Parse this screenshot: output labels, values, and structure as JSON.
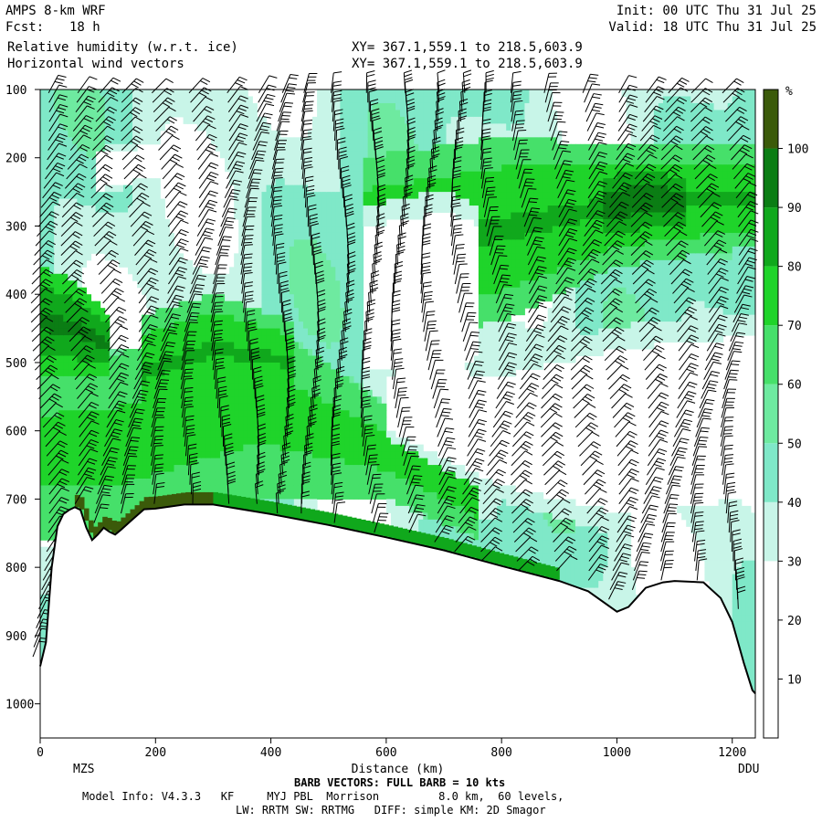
{
  "header": {
    "model": "AMPS 8-km WRF",
    "forecast_label": "Fcst:",
    "forecast_value": "18 h",
    "field1": "Relative humidity (w.r.t. ice)",
    "field2": "Horizontal wind vectors",
    "init": "Init: 00 UTC Thu 31 Jul 25",
    "valid": "Valid: 18 UTC Thu 31 Jul 25",
    "xy1": "XY= 367.1,559.1 to 218.5,603.9",
    "xy2": "XY= 367.1,559.1 to 218.5,603.9"
  },
  "footer": {
    "barb_note": "BARB VECTORS: FULL BARB = 10 kts",
    "model_info": "Model Info: V4.3.3   KF     MYJ PBL  Morrison         8.0 km,  60 levels,",
    "physics": "LW: RRTM SW: RRTMG   DIFF: simple KM: 2D Smagor"
  },
  "colors": {
    "bands": [
      "#ffffff",
      "#ffffff",
      "#ffffff",
      "#c8f5e8",
      "#7fe8c8",
      "#6eeaa0",
      "#46e06a",
      "#1fd42a",
      "#10a81c",
      "#0b7d14",
      "#3b5a0a"
    ],
    "barb": "#000000",
    "terrain_line": "#000000"
  },
  "chart_data": {
    "type": "heatmap",
    "title": "Relative humidity (w.r.t. ice)",
    "xlabel": "Distance (km)",
    "ylabel": "",
    "x_ticks": [
      0,
      200,
      400,
      600,
      800,
      1000,
      1200
    ],
    "y_ticks": [
      100,
      200,
      300,
      400,
      500,
      600,
      700,
      800,
      900,
      1000
    ],
    "xlim": [
      0,
      1240
    ],
    "ylim": [
      1050,
      100
    ],
    "start_label": "MZS",
    "end_label": "DDU",
    "colorbar": {
      "unit": "%",
      "ticks": [
        10,
        20,
        30,
        40,
        50,
        60,
        70,
        80,
        90,
        100
      ],
      "range": [
        0,
        110
      ]
    },
    "terrain": {
      "x": [
        0,
        10,
        20,
        30,
        40,
        50,
        60,
        70,
        80,
        90,
        100,
        110,
        120,
        130,
        140,
        160,
        180,
        200,
        250,
        300,
        400,
        500,
        600,
        700,
        800,
        900,
        950,
        1000,
        1020,
        1050,
        1080,
        1100,
        1150,
        1180,
        1200,
        1220,
        1235,
        1240
      ],
      "p": [
        945,
        910,
        800,
        740,
        722,
        716,
        712,
        716,
        742,
        760,
        752,
        742,
        748,
        752,
        745,
        730,
        715,
        714,
        708,
        708,
        722,
        738,
        756,
        775,
        798,
        820,
        835,
        865,
        858,
        830,
        822,
        820,
        822,
        845,
        880,
        940,
        980,
        985
      ]
    },
    "moist_layers": [
      {
        "x": [
          0,
          150,
          380,
          600,
          760
        ],
        "p_top": [
          500,
          480,
          430,
          560,
          650
        ],
        "p_bot": [
          760,
          760,
          700,
          700,
          760
        ],
        "rh": 70
      },
      {
        "x": [
          0,
          60,
          120
        ],
        "p_top": [
          360,
          380,
          430
        ],
        "p_bot": [
          520,
          520,
          520
        ],
        "rh": 85
      },
      {
        "x": [
          180,
          300,
          440
        ],
        "p_top": [
          430,
          400,
          440
        ],
        "p_bot": [
          600,
          560,
          560
        ],
        "rh": 75
      },
      {
        "x": [
          560,
          800,
          1000,
          1240
        ],
        "p_top": [
          200,
          170,
          180,
          180
        ],
        "p_bot": [
          480,
          440,
          360,
          330
        ],
        "rh": 75
      },
      {
        "x": [
          980,
          1060,
          1120
        ],
        "p_top": [
          220,
          210,
          230
        ],
        "p_bot": [
          320,
          310,
          300
        ],
        "rh": 90
      }
    ],
    "dry_layers": [
      {
        "x": [
          600,
          800,
          1000,
          1240
        ],
        "p_top": [
          500,
          480,
          420,
          400
        ],
        "p_bot": [
          620,
          720,
          780,
          760
        ],
        "rh": 20
      },
      {
        "x": [
          100,
          200,
          300
        ],
        "p_top": [
          180,
          170,
          200
        ],
        "p_bot": [
          260,
          240,
          260
        ],
        "rh": 20
      },
      {
        "x": [
          560,
          700,
          760
        ],
        "p_top": [
          250,
          220,
          250
        ],
        "p_bot": [
          560,
          580,
          540
        ],
        "rh": 20
      }
    ],
    "barb_columns": [
      0,
      52,
      104,
      156,
      208,
      260,
      312,
      364,
      416,
      468,
      520,
      572,
      624,
      676,
      728,
      780,
      832,
      884,
      936,
      988,
      1040,
      1092,
      1144,
      1196
    ]
  }
}
